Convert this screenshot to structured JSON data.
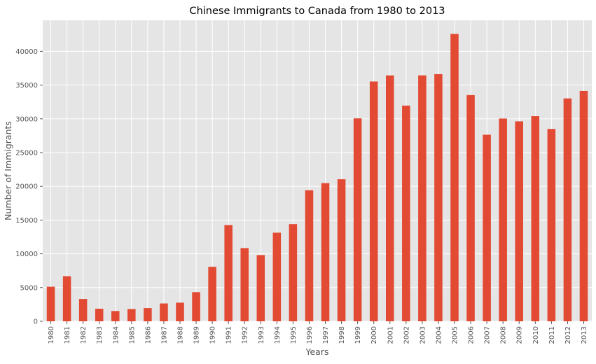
{
  "chart_data": {
    "type": "bar",
    "title": "Chinese Immigrants to Canada from 1980 to 2013",
    "xlabel": "Years",
    "ylabel": "Number of Immigrants",
    "ylim": [
      0,
      44600
    ],
    "yticks": [
      0,
      5000,
      10000,
      15000,
      20000,
      25000,
      30000,
      35000,
      40000
    ],
    "grid": true,
    "legend": "none",
    "categories": [
      "1980",
      "1981",
      "1982",
      "1983",
      "1984",
      "1985",
      "1986",
      "1987",
      "1988",
      "1989",
      "1990",
      "1991",
      "1992",
      "1993",
      "1994",
      "1995",
      "1996",
      "1997",
      "1998",
      "1999",
      "2000",
      "2001",
      "2002",
      "2003",
      "2004",
      "2005",
      "2006",
      "2007",
      "2008",
      "2009",
      "2010",
      "2011",
      "2012",
      "2013"
    ],
    "values": [
      5123,
      6682,
      3308,
      1863,
      1527,
      1816,
      1960,
      2643,
      2758,
      4323,
      8076,
      14255,
      10846,
      9817,
      13128,
      14398,
      19415,
      20475,
      21049,
      30069,
      35529,
      36434,
      31961,
      36439,
      36619,
      42584,
      33518,
      27642,
      30037,
      29622,
      30391,
      28502,
      33024,
      34129
    ],
    "bar_color": "#E24A33",
    "plot_background": "#E5E5E5",
    "grid_color": "#FFFFFF",
    "text_color": "#555555"
  }
}
